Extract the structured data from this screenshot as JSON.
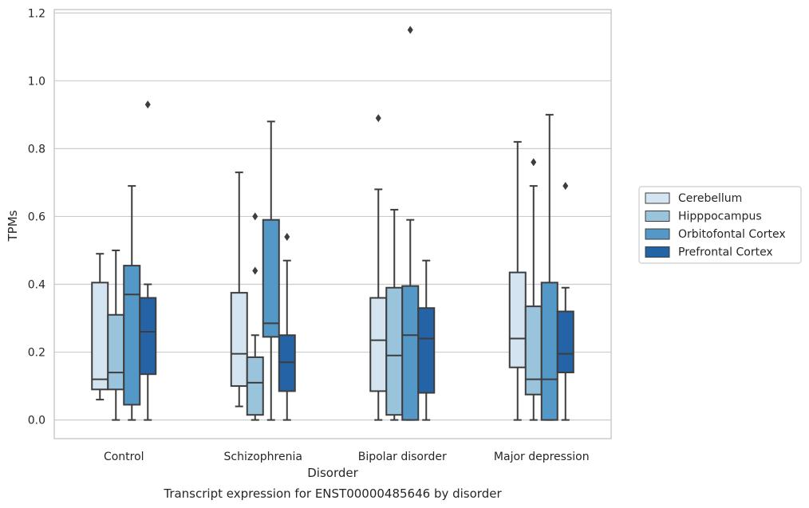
{
  "chart_data": {
    "type": "box",
    "title": "",
    "caption": "Transcript expression for ENST00000485646 by disorder",
    "xlabel": "Disorder",
    "ylabel": "TPMs",
    "ylim": [
      -0.055,
      1.21
    ],
    "yticks": [
      "0.0",
      "0.2",
      "0.4",
      "0.6",
      "0.8",
      "1.0",
      "1.2"
    ],
    "grid": "horizontal",
    "legend_position": "right",
    "categories": [
      "Control",
      "Schizophrenia",
      "Bipolar disorder",
      "Major depression"
    ],
    "series": [
      {
        "name": "Cerebellum",
        "color": "#d4e4f1",
        "boxes": [
          {
            "whislo": 0.06,
            "q1": 0.09,
            "med": 0.12,
            "q3": 0.405,
            "whishi": 0.49,
            "fliers": []
          },
          {
            "whislo": 0.04,
            "q1": 0.1,
            "med": 0.195,
            "q3": 0.375,
            "whishi": 0.73,
            "fliers": []
          },
          {
            "whislo": 0.0,
            "q1": 0.085,
            "med": 0.235,
            "q3": 0.36,
            "whishi": 0.68,
            "fliers": [
              0.89
            ]
          },
          {
            "whislo": 0.0,
            "q1": 0.155,
            "med": 0.24,
            "q3": 0.435,
            "whishi": 0.82,
            "fliers": []
          }
        ]
      },
      {
        "name": "Hipppocampus",
        "color": "#9ac3dc",
        "boxes": [
          {
            "whislo": 0.0,
            "q1": 0.09,
            "med": 0.14,
            "q3": 0.31,
            "whishi": 0.5,
            "fliers": []
          },
          {
            "whislo": 0.0,
            "q1": 0.015,
            "med": 0.11,
            "q3": 0.185,
            "whishi": 0.25,
            "fliers": [
              0.44,
              0.6
            ]
          },
          {
            "whislo": 0.0,
            "q1": 0.015,
            "med": 0.19,
            "q3": 0.39,
            "whishi": 0.62,
            "fliers": []
          },
          {
            "whislo": 0.0,
            "q1": 0.075,
            "med": 0.12,
            "q3": 0.335,
            "whishi": 0.69,
            "fliers": [
              0.76
            ]
          }
        ]
      },
      {
        "name": "Orbitofontal Cortex",
        "color": "#5498c8",
        "boxes": [
          {
            "whislo": 0.0,
            "q1": 0.045,
            "med": 0.37,
            "q3": 0.455,
            "whishi": 0.69,
            "fliers": []
          },
          {
            "whislo": 0.0,
            "q1": 0.245,
            "med": 0.285,
            "q3": 0.59,
            "whishi": 0.88,
            "fliers": []
          },
          {
            "whislo": 0.0,
            "q1": 0.0,
            "med": 0.25,
            "q3": 0.395,
            "whishi": 0.59,
            "fliers": [
              1.15
            ]
          },
          {
            "whislo": 0.0,
            "q1": 0.0,
            "med": 0.12,
            "q3": 0.405,
            "whishi": 0.9,
            "fliers": []
          }
        ]
      },
      {
        "name": "Prefrontal Cortex",
        "color": "#2464a6",
        "boxes": [
          {
            "whislo": 0.0,
            "q1": 0.135,
            "med": 0.26,
            "q3": 0.36,
            "whishi": 0.4,
            "fliers": [
              0.93
            ]
          },
          {
            "whislo": 0.0,
            "q1": 0.085,
            "med": 0.17,
            "q3": 0.25,
            "whishi": 0.47,
            "fliers": [
              0.54
            ]
          },
          {
            "whislo": 0.0,
            "q1": 0.08,
            "med": 0.24,
            "q3": 0.33,
            "whishi": 0.47,
            "fliers": []
          },
          {
            "whislo": 0.0,
            "q1": 0.14,
            "med": 0.195,
            "q3": 0.32,
            "whishi": 0.39,
            "fliers": [
              0.69
            ]
          }
        ]
      }
    ]
  }
}
